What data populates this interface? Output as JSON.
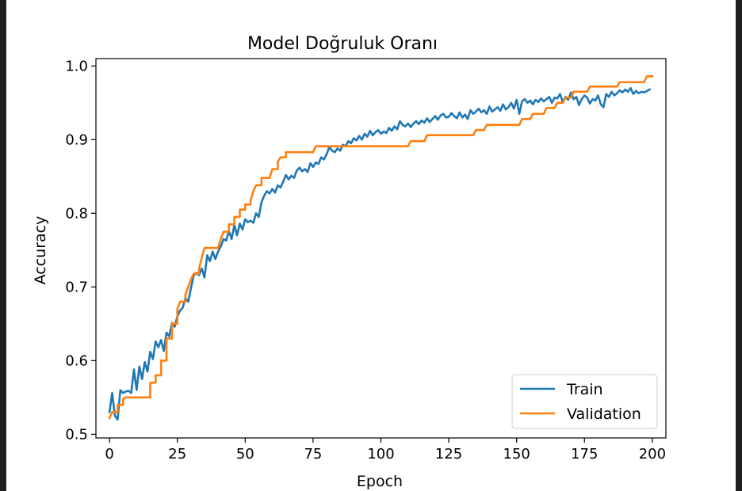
{
  "chart_data": {
    "type": "line",
    "title": "Model Doğruluk Oranı",
    "xlabel": "Epoch",
    "ylabel": "Accuracy",
    "xlim": [
      -5,
      205
    ],
    "ylim": [
      0.495,
      1.01
    ],
    "xticks": [
      0,
      25,
      50,
      75,
      100,
      125,
      150,
      175,
      200
    ],
    "xtick_labels": [
      "0",
      "25",
      "50",
      "75",
      "100",
      "125",
      "150",
      "175",
      "200"
    ],
    "yticks": [
      0.5,
      0.6,
      0.7,
      0.8,
      0.9,
      1.0
    ],
    "ytick_labels": [
      "0.5",
      "0.6",
      "0.7",
      "0.8",
      "0.9",
      "1.0"
    ],
    "grid": false,
    "legend_position": "bottom-right",
    "series": [
      {
        "name": "Train",
        "color": "#1f77b4",
        "points": [
          [
            0,
            0.53
          ],
          [
            1,
            0.556
          ],
          [
            2,
            0.525
          ],
          [
            3,
            0.52
          ],
          [
            4,
            0.56
          ],
          [
            5,
            0.556
          ],
          [
            6,
            0.558
          ],
          [
            7,
            0.559
          ],
          [
            8,
            0.556
          ],
          [
            9,
            0.588
          ],
          [
            10,
            0.56
          ],
          [
            11,
            0.592
          ],
          [
            12,
            0.575
          ],
          [
            13,
            0.598
          ],
          [
            14,
            0.585
          ],
          [
            15,
            0.612
          ],
          [
            16,
            0.602
          ],
          [
            17,
            0.626
          ],
          [
            18,
            0.618
          ],
          [
            19,
            0.628
          ],
          [
            20,
            0.613
          ],
          [
            21,
            0.638
          ],
          [
            22,
            0.633
          ],
          [
            23,
            0.651
          ],
          [
            24,
            0.646
          ],
          [
            25,
            0.66
          ],
          [
            26,
            0.668
          ],
          [
            27,
            0.672
          ],
          [
            28,
            0.685
          ],
          [
            29,
            0.68
          ],
          [
            30,
            0.698
          ],
          [
            31,
            0.715
          ],
          [
            32,
            0.719
          ],
          [
            33,
            0.716
          ],
          [
            34,
            0.725
          ],
          [
            35,
            0.713
          ],
          [
            36,
            0.743
          ],
          [
            37,
            0.735
          ],
          [
            38,
            0.748
          ],
          [
            39,
            0.738
          ],
          [
            40,
            0.748
          ],
          [
            41,
            0.755
          ],
          [
            42,
            0.765
          ],
          [
            43,
            0.763
          ],
          [
            44,
            0.776
          ],
          [
            45,
            0.765
          ],
          [
            46,
            0.784
          ],
          [
            47,
            0.77
          ],
          [
            48,
            0.786
          ],
          [
            49,
            0.778
          ],
          [
            50,
            0.792
          ],
          [
            51,
            0.788
          ],
          [
            52,
            0.79
          ],
          [
            53,
            0.787
          ],
          [
            54,
            0.8
          ],
          [
            55,
            0.795
          ],
          [
            56,
            0.815
          ],
          [
            57,
            0.824
          ],
          [
            58,
            0.83
          ],
          [
            59,
            0.827
          ],
          [
            60,
            0.833
          ],
          [
            61,
            0.828
          ],
          [
            62,
            0.838
          ],
          [
            63,
            0.835
          ],
          [
            64,
            0.843
          ],
          [
            65,
            0.852
          ],
          [
            66,
            0.846
          ],
          [
            67,
            0.851
          ],
          [
            68,
            0.848
          ],
          [
            69,
            0.858
          ],
          [
            70,
            0.862
          ],
          [
            71,
            0.857
          ],
          [
            72,
            0.86
          ],
          [
            73,
            0.856
          ],
          [
            74,
            0.868
          ],
          [
            75,
            0.863
          ],
          [
            76,
            0.869
          ],
          [
            77,
            0.867
          ],
          [
            78,
            0.876
          ],
          [
            79,
            0.873
          ],
          [
            80,
            0.88
          ],
          [
            81,
            0.89
          ],
          [
            82,
            0.885
          ],
          [
            83,
            0.883
          ],
          [
            84,
            0.888
          ],
          [
            85,
            0.885
          ],
          [
            86,
            0.893
          ],
          [
            87,
            0.891
          ],
          [
            88,
            0.898
          ],
          [
            89,
            0.895
          ],
          [
            90,
            0.902
          ],
          [
            91,
            0.899
          ],
          [
            92,
            0.905
          ],
          [
            93,
            0.9
          ],
          [
            94,
            0.908
          ],
          [
            95,
            0.904
          ],
          [
            96,
            0.912
          ],
          [
            97,
            0.906
          ],
          [
            98,
            0.91
          ],
          [
            99,
            0.913
          ],
          [
            100,
            0.908
          ],
          [
            101,
            0.911
          ],
          [
            102,
            0.909
          ],
          [
            103,
            0.916
          ],
          [
            104,
            0.912
          ],
          [
            105,
            0.918
          ],
          [
            106,
            0.914
          ],
          [
            107,
            0.925
          ],
          [
            108,
            0.92
          ],
          [
            109,
            0.918
          ],
          [
            110,
            0.922
          ],
          [
            111,
            0.917
          ],
          [
            112,
            0.922
          ],
          [
            113,
            0.925
          ],
          [
            114,
            0.921
          ],
          [
            115,
            0.926
          ],
          [
            116,
            0.923
          ],
          [
            117,
            0.929
          ],
          [
            118,
            0.924
          ],
          [
            119,
            0.928
          ],
          [
            120,
            0.932
          ],
          [
            121,
            0.927
          ],
          [
            122,
            0.933
          ],
          [
            123,
            0.935
          ],
          [
            124,
            0.93
          ],
          [
            125,
            0.931
          ],
          [
            126,
            0.936
          ],
          [
            127,
            0.932
          ],
          [
            128,
            0.929
          ],
          [
            129,
            0.937
          ],
          [
            130,
            0.93
          ],
          [
            131,
            0.934
          ],
          [
            132,
            0.928
          ],
          [
            133,
            0.94
          ],
          [
            134,
            0.935
          ],
          [
            135,
            0.938
          ],
          [
            136,
            0.942
          ],
          [
            137,
            0.937
          ],
          [
            138,
            0.94
          ],
          [
            139,
            0.935
          ],
          [
            140,
            0.945
          ],
          [
            141,
            0.938
          ],
          [
            142,
            0.941
          ],
          [
            143,
            0.944
          ],
          [
            144,
            0.939
          ],
          [
            145,
            0.948
          ],
          [
            146,
            0.941
          ],
          [
            147,
            0.944
          ],
          [
            148,
            0.95
          ],
          [
            149,
            0.942
          ],
          [
            150,
            0.954
          ],
          [
            151,
            0.935
          ],
          [
            152,
            0.952
          ],
          [
            153,
            0.955
          ],
          [
            154,
            0.95
          ],
          [
            155,
            0.953
          ],
          [
            156,
            0.948
          ],
          [
            157,
            0.954
          ],
          [
            158,
            0.951
          ],
          [
            159,
            0.956
          ],
          [
            160,
            0.952
          ],
          [
            161,
            0.955
          ],
          [
            162,
            0.958
          ],
          [
            163,
            0.95
          ],
          [
            164,
            0.957
          ],
          [
            165,
            0.956
          ],
          [
            166,
            0.962
          ],
          [
            167,
            0.951
          ],
          [
            168,
            0.958
          ],
          [
            169,
            0.954
          ],
          [
            170,
            0.964
          ],
          [
            171,
            0.955
          ],
          [
            172,
            0.958
          ],
          [
            173,
            0.947
          ],
          [
            174,
            0.955
          ],
          [
            175,
            0.96
          ],
          [
            176,
            0.957
          ],
          [
            177,
            0.949
          ],
          [
            178,
            0.955
          ],
          [
            179,
            0.953
          ],
          [
            180,
            0.96
          ],
          [
            181,
            0.948
          ],
          [
            182,
            0.944
          ],
          [
            183,
            0.962
          ],
          [
            184,
            0.958
          ],
          [
            185,
            0.965
          ],
          [
            186,
            0.96
          ],
          [
            187,
            0.963
          ],
          [
            188,
            0.967
          ],
          [
            189,
            0.964
          ],
          [
            190,
            0.968
          ],
          [
            191,
            0.965
          ],
          [
            192,
            0.97
          ],
          [
            193,
            0.962
          ],
          [
            194,
            0.966
          ],
          [
            195,
            0.963
          ],
          [
            196,
            0.965
          ],
          [
            197,
            0.964
          ],
          [
            198,
            0.966
          ],
          [
            199,
            0.968
          ]
        ]
      },
      {
        "name": "Validation",
        "color": "#ff7f0e",
        "points": [
          [
            0,
            0.522
          ],
          [
            1,
            0.53
          ],
          [
            3,
            0.54
          ],
          [
            5,
            0.548
          ],
          [
            6,
            0.55
          ],
          [
            13,
            0.55
          ],
          [
            15,
            0.57
          ],
          [
            17,
            0.58
          ],
          [
            19,
            0.6
          ],
          [
            21,
            0.63
          ],
          [
            23,
            0.65
          ],
          [
            25,
            0.67
          ],
          [
            26,
            0.68
          ],
          [
            28,
            0.69
          ],
          [
            29,
            0.7
          ],
          [
            30,
            0.71
          ],
          [
            31,
            0.718
          ],
          [
            33,
            0.725
          ],
          [
            34,
            0.74
          ],
          [
            35,
            0.753
          ],
          [
            40,
            0.753
          ],
          [
            41,
            0.765
          ],
          [
            42,
            0.775
          ],
          [
            44,
            0.785
          ],
          [
            46,
            0.795
          ],
          [
            48,
            0.805
          ],
          [
            50,
            0.812
          ],
          [
            52,
            0.818
          ],
          [
            53,
            0.83
          ],
          [
            54,
            0.838
          ],
          [
            56,
            0.848
          ],
          [
            59,
            0.848
          ],
          [
            60,
            0.86
          ],
          [
            62,
            0.87
          ],
          [
            63,
            0.876
          ],
          [
            65,
            0.883
          ],
          [
            75,
            0.883
          ],
          [
            76,
            0.891
          ],
          [
            110,
            0.891
          ],
          [
            111,
            0.898
          ],
          [
            116,
            0.898
          ],
          [
            117,
            0.906
          ],
          [
            134,
            0.906
          ],
          [
            135,
            0.913
          ],
          [
            138,
            0.913
          ],
          [
            139,
            0.92
          ],
          [
            151,
            0.92
          ],
          [
            152,
            0.928
          ],
          [
            155,
            0.928
          ],
          [
            156,
            0.935
          ],
          [
            160,
            0.935
          ],
          [
            161,
            0.943
          ],
          [
            164,
            0.943
          ],
          [
            165,
            0.95
          ],
          [
            167,
            0.95
          ],
          [
            168,
            0.957
          ],
          [
            170,
            0.957
          ],
          [
            171,
            0.965
          ],
          [
            176,
            0.965
          ],
          [
            177,
            0.972
          ],
          [
            187,
            0.972
          ],
          [
            188,
            0.978
          ],
          [
            197,
            0.978
          ],
          [
            198,
            0.986
          ],
          [
            200,
            0.986
          ]
        ]
      }
    ]
  }
}
